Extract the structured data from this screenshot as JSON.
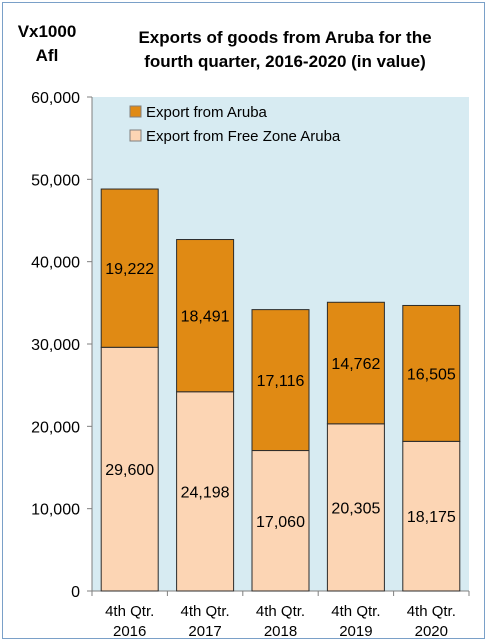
{
  "unit": {
    "line1": "Vx1000",
    "line2": "Afl"
  },
  "title": {
    "line1": "Exports of goods from Aruba for the",
    "line2": "fourth quarter,  2016-2020 (in value)"
  },
  "chart_data": {
    "type": "bar",
    "stacked": true,
    "title": "Exports of goods from Aruba for the fourth quarter,  2016-2020 (in value)",
    "ylabel": "Vx1000 Afl",
    "xlabel": "",
    "ylim": [
      0,
      60000
    ],
    "yticks": [
      0,
      10000,
      20000,
      30000,
      40000,
      50000,
      60000
    ],
    "ytick_labels": [
      "0",
      "10,000",
      "20,000",
      "30,000",
      "40,000",
      "50,000",
      "60,000"
    ],
    "categories": [
      [
        "4th Qtr.",
        "2016"
      ],
      [
        "4th Qtr.",
        "2017"
      ],
      [
        "4th Qtr.",
        "2018"
      ],
      [
        "4th Qtr.",
        "2019"
      ],
      [
        "4th Qtr.",
        "2020"
      ]
    ],
    "series": [
      {
        "name": "Export from Free Zone Aruba",
        "values": [
          29600,
          24198,
          17060,
          20305,
          18175
        ],
        "labels": [
          "29,600",
          "24,198",
          "17,060",
          "20,305",
          "18,175"
        ],
        "color": "#fcd5b4"
      },
      {
        "name": "Export from Aruba",
        "values": [
          19222,
          18491,
          17116,
          14762,
          16505
        ],
        "labels": [
          "19,222",
          "18,491",
          "17,116",
          "14,762",
          "16,505"
        ],
        "color": "#e08a14"
      }
    ],
    "legend_order": [
      "Export from Aruba",
      "Export from Free Zone Aruba"
    ],
    "legend_position": "top-left",
    "grid": false,
    "plot_background": "#d7ebf2",
    "bar_outline": "#2b2b2b"
  }
}
